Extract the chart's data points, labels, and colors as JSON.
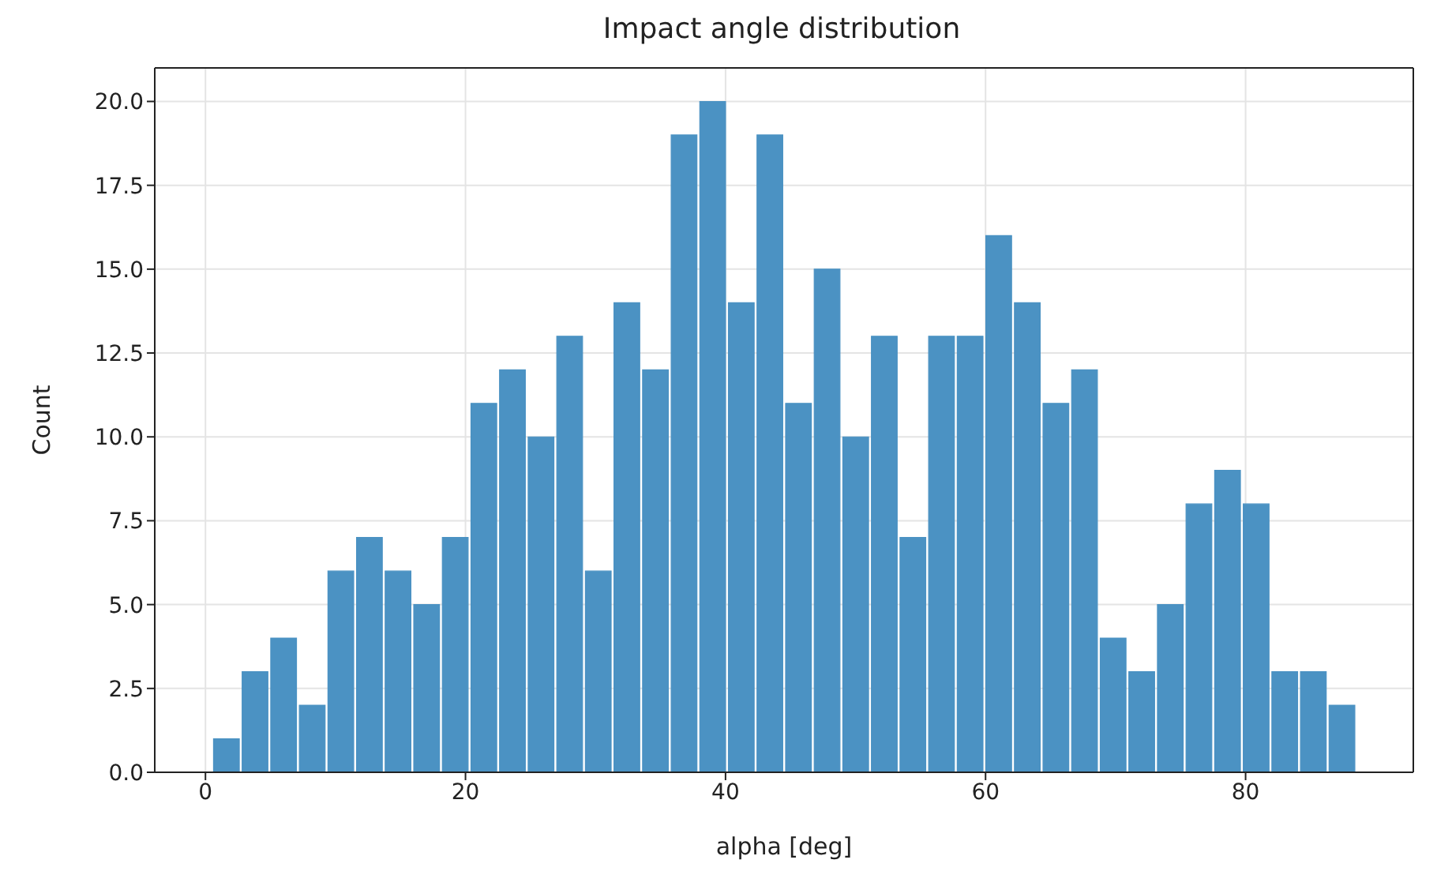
{
  "chart_data": {
    "type": "histogram",
    "title": "Impact angle distribution",
    "xlabel": "alpha [deg]",
    "ylabel": "Count",
    "bins": [
      0.5,
      2.7,
      4.9,
      7.1,
      9.3,
      11.5,
      13.7,
      15.9,
      18.1,
      20.3,
      22.5,
      24.7,
      26.9,
      29.1,
      31.3,
      33.5,
      35.7,
      37.9,
      40.1,
      42.3,
      44.5,
      46.7,
      48.9,
      51.1,
      53.3,
      55.5,
      57.7,
      59.9,
      62.1,
      64.3,
      66.5,
      68.7,
      70.9,
      73.1,
      75.3,
      77.5,
      79.7,
      81.9,
      84.1,
      86.3,
      88.5
    ],
    "values": [
      1,
      3,
      4,
      2,
      6,
      7,
      6,
      5,
      7,
      11,
      12,
      10,
      13,
      6,
      14,
      12,
      19,
      20,
      14,
      19,
      11,
      15,
      10,
      13,
      7,
      13,
      13,
      16,
      14,
      11,
      12,
      4,
      3,
      5,
      8,
      9,
      8,
      3,
      3,
      2
    ],
    "color": "#4b92c3",
    "xlim": [
      -3.9,
      92.9
    ],
    "xticks": [
      0,
      20,
      40,
      60,
      80
    ],
    "ylim": [
      0,
      21
    ],
    "yticks": [
      {
        "value": 0,
        "label": "0.0"
      },
      {
        "value": 2.5,
        "label": "2.5"
      },
      {
        "value": 5,
        "label": "5.0"
      },
      {
        "value": 7.5,
        "label": "7.5"
      },
      {
        "value": 10,
        "label": "10.0"
      },
      {
        "value": 12.5,
        "label": "12.5"
      },
      {
        "value": 15,
        "label": "15.0"
      },
      {
        "value": 17.5,
        "label": "17.5"
      },
      {
        "value": 20,
        "label": "20.0"
      }
    ],
    "grid": true
  }
}
